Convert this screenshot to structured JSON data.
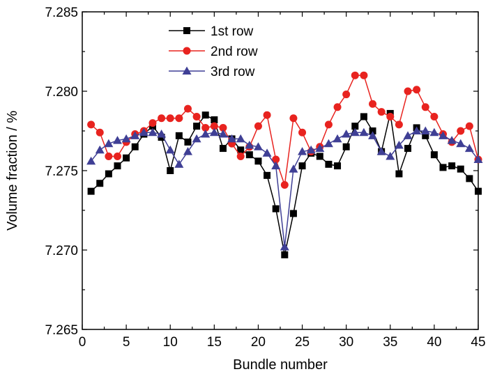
{
  "chart_data": {
    "type": "line",
    "title": "",
    "xlabel": "Bundle number",
    "ylabel": "Volume fraction / %",
    "xlim": [
      0,
      45
    ],
    "ylim": [
      7.265,
      7.285
    ],
    "xticks": [
      0,
      5,
      10,
      15,
      20,
      25,
      30,
      35,
      40,
      45
    ],
    "yticks": [
      7.265,
      7.27,
      7.275,
      7.28,
      7.285
    ],
    "ytick_labels": [
      "7.265",
      "7.270",
      "7.275",
      "7.280",
      "7.285"
    ],
    "legend_position": "top-center",
    "x": [
      1,
      2,
      3,
      4,
      5,
      6,
      7,
      8,
      9,
      10,
      11,
      12,
      13,
      14,
      15,
      16,
      17,
      18,
      19,
      20,
      21,
      22,
      23,
      24,
      25,
      26,
      27,
      28,
      29,
      30,
      31,
      32,
      33,
      34,
      35,
      36,
      37,
      38,
      39,
      40,
      41,
      42,
      43,
      44,
      45
    ],
    "series": [
      {
        "name": "1st row",
        "color": "#000000",
        "marker": "square",
        "values": [
          7.2737,
          7.2742,
          7.2748,
          7.2753,
          7.2758,
          7.2765,
          7.2773,
          7.2778,
          7.2771,
          7.275,
          7.2772,
          7.2768,
          7.2778,
          7.2785,
          7.2782,
          7.2764,
          7.277,
          7.2763,
          7.276,
          7.2756,
          7.2747,
          7.2726,
          7.2697,
          7.2723,
          7.2753,
          7.2761,
          7.2759,
          7.2754,
          7.2753,
          7.2765,
          7.2778,
          7.2784,
          7.2775,
          7.2762,
          7.2786,
          7.2748,
          7.2764,
          7.2777,
          7.2772,
          7.276,
          7.2752,
          7.2753,
          7.2751,
          7.2745,
          7.2737
        ]
      },
      {
        "name": "2nd row",
        "color": "#e8231f",
        "marker": "circle",
        "values": [
          7.2779,
          7.2774,
          7.2759,
          7.2759,
          7.2768,
          7.2773,
          7.2775,
          7.278,
          7.2783,
          7.2783,
          7.2783,
          7.2789,
          7.2784,
          7.2777,
          7.2778,
          7.2777,
          7.2767,
          7.2759,
          7.2765,
          7.2778,
          7.2785,
          7.2757,
          7.2741,
          7.2783,
          7.2774,
          7.2762,
          7.2765,
          7.2779,
          7.279,
          7.2798,
          7.281,
          7.281,
          7.2792,
          7.2787,
          7.2784,
          7.2779,
          7.28,
          7.2801,
          7.279,
          7.2784,
          7.2773,
          7.2768,
          7.2775,
          7.2778,
          7.2757
        ]
      },
      {
        "name": "3rd row",
        "color": "#3f3f95",
        "marker": "triangle",
        "values": [
          7.2756,
          7.2763,
          7.2767,
          7.2769,
          7.277,
          7.2772,
          7.2774,
          7.2774,
          7.2773,
          7.2763,
          7.2754,
          7.2762,
          7.277,
          7.2773,
          7.2774,
          7.2773,
          7.277,
          7.277,
          7.2766,
          7.2765,
          7.2761,
          7.2753,
          7.2702,
          7.2751,
          7.2762,
          7.2763,
          7.2764,
          7.2767,
          7.277,
          7.2773,
          7.2774,
          7.2774,
          7.2772,
          7.2762,
          7.2759,
          7.2766,
          7.2772,
          7.2775,
          7.2775,
          7.2774,
          7.2772,
          7.2769,
          7.2767,
          7.2764,
          7.2757
        ]
      }
    ]
  }
}
